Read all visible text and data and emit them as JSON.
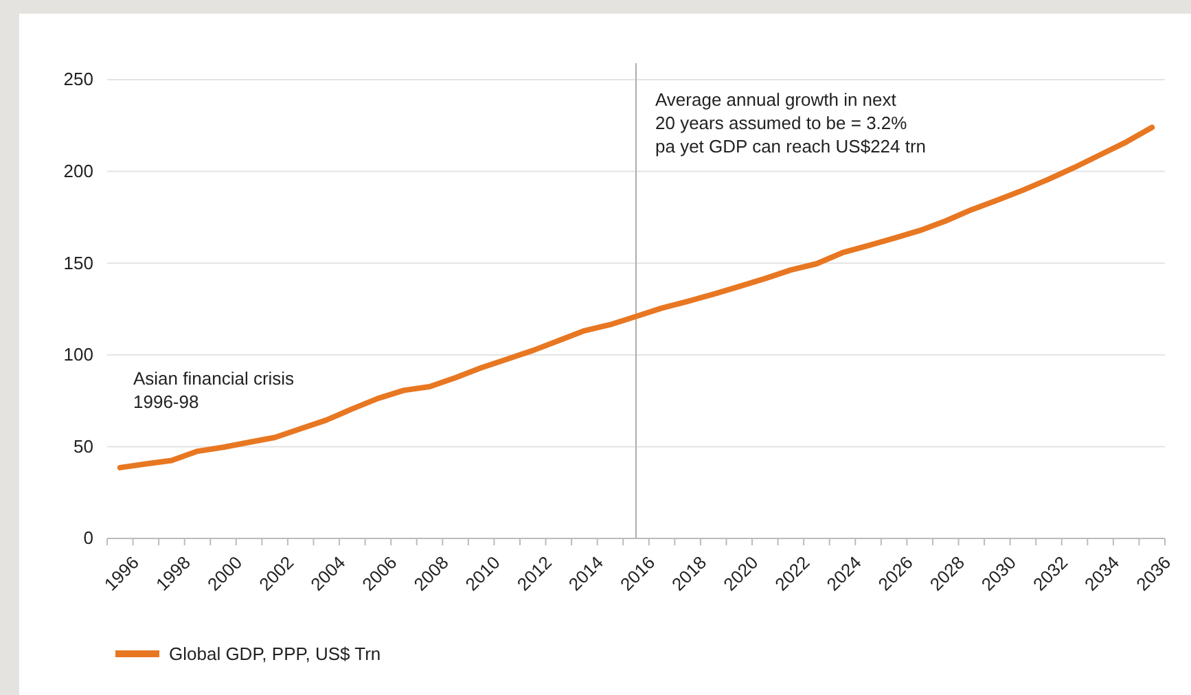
{
  "chart_data": {
    "type": "line",
    "categories": [
      "1996",
      null,
      "1998",
      null,
      "2000",
      null,
      "2002",
      null,
      "2004",
      null,
      "2006",
      null,
      "2008",
      null,
      "2010",
      null,
      "2012",
      null,
      "2014",
      null,
      "2016",
      null,
      "2018",
      null,
      "2020",
      null,
      "2022",
      null,
      "2024",
      null,
      "2026",
      null,
      "2028",
      null,
      "2030",
      null,
      "2032",
      null,
      "2034",
      null,
      "2036"
    ],
    "series": [
      {
        "name": "Global GDP, PPP, US$ Trn",
        "color": "#e87722",
        "values": [
          38.6,
          40.6,
          42.5,
          47.5,
          49.7,
          52.4,
          55,
          59.8,
          64.5,
          70.6,
          76.3,
          80.7,
          82.7,
          87.6,
          93,
          97.7,
          102.4,
          107.8,
          113.2,
          116.5,
          121,
          125.5,
          129.2,
          133.1,
          137.3,
          141.6,
          146.3,
          149.7,
          155.7,
          159.6,
          163.6,
          167.8,
          173,
          179.1,
          184.3,
          189.8,
          195.8,
          202.2,
          209.1,
          216,
          224
        ]
      }
    ],
    "ylim": [
      0,
      250
    ],
    "yticks": [
      0,
      50,
      100,
      150,
      200,
      250
    ],
    "grid": "y",
    "legend": "bottom left",
    "marker": "none",
    "line_style": "solid",
    "ref_lines": [
      {
        "axis": "x",
        "value": "2016",
        "color": "#b0ada5"
      }
    ],
    "annotations": [
      "Asian financial crisis\n1996-98",
      "Average annual growth in next\n20 years assumed to be = 3.2%\npa yet GDP can reach US$224 trn"
    ]
  }
}
